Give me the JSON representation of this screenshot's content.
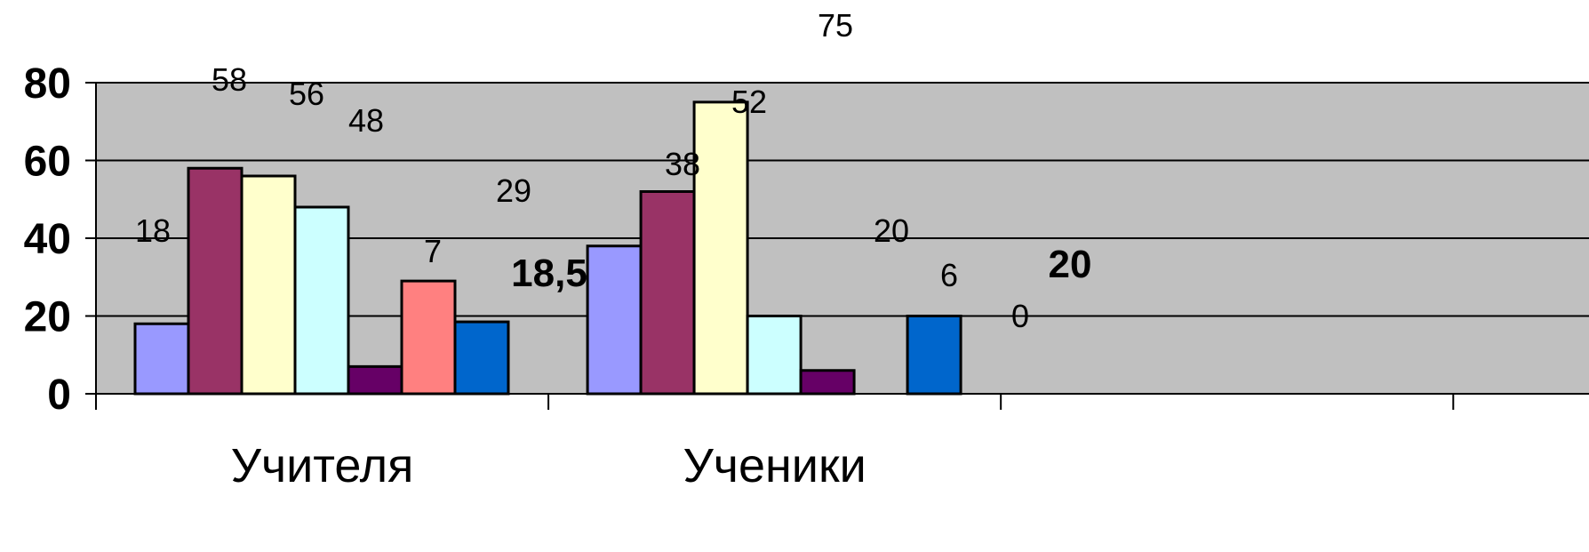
{
  "chart_data": {
    "type": "bar",
    "title": "",
    "xlabel": "",
    "ylabel": "",
    "ylim": [
      0,
      80
    ],
    "yticks": [
      0,
      20,
      40,
      60,
      80
    ],
    "categories": [
      "Учителя",
      "Ученики",
      ""
    ],
    "grid": true,
    "legend": "none",
    "plot_background": "#c0c0c0",
    "series": [
      {
        "color": "#9999ff",
        "values": [
          18,
          38,
          null
        ],
        "labels": [
          "18",
          "38",
          ""
        ]
      },
      {
        "color": "#993366",
        "values": [
          58,
          52,
          null
        ],
        "labels": [
          "58",
          "52",
          ""
        ]
      },
      {
        "color": "#ffffcc",
        "values": [
          56,
          75,
          null
        ],
        "labels": [
          "56",
          "75",
          ""
        ]
      },
      {
        "color": "#ccffff",
        "values": [
          48,
          20,
          null
        ],
        "labels": [
          "48",
          "20",
          ""
        ]
      },
      {
        "color": "#660066",
        "values": [
          7,
          6,
          null
        ],
        "labels": [
          "7",
          "6",
          ""
        ]
      },
      {
        "color": "#ff8080",
        "values": [
          29,
          0,
          null
        ],
        "labels": [
          "29",
          "0",
          ""
        ]
      },
      {
        "color": "#0066cc",
        "values": [
          18.5,
          20,
          null
        ],
        "labels": [
          "18,5",
          "20",
          ""
        ]
      }
    ]
  }
}
